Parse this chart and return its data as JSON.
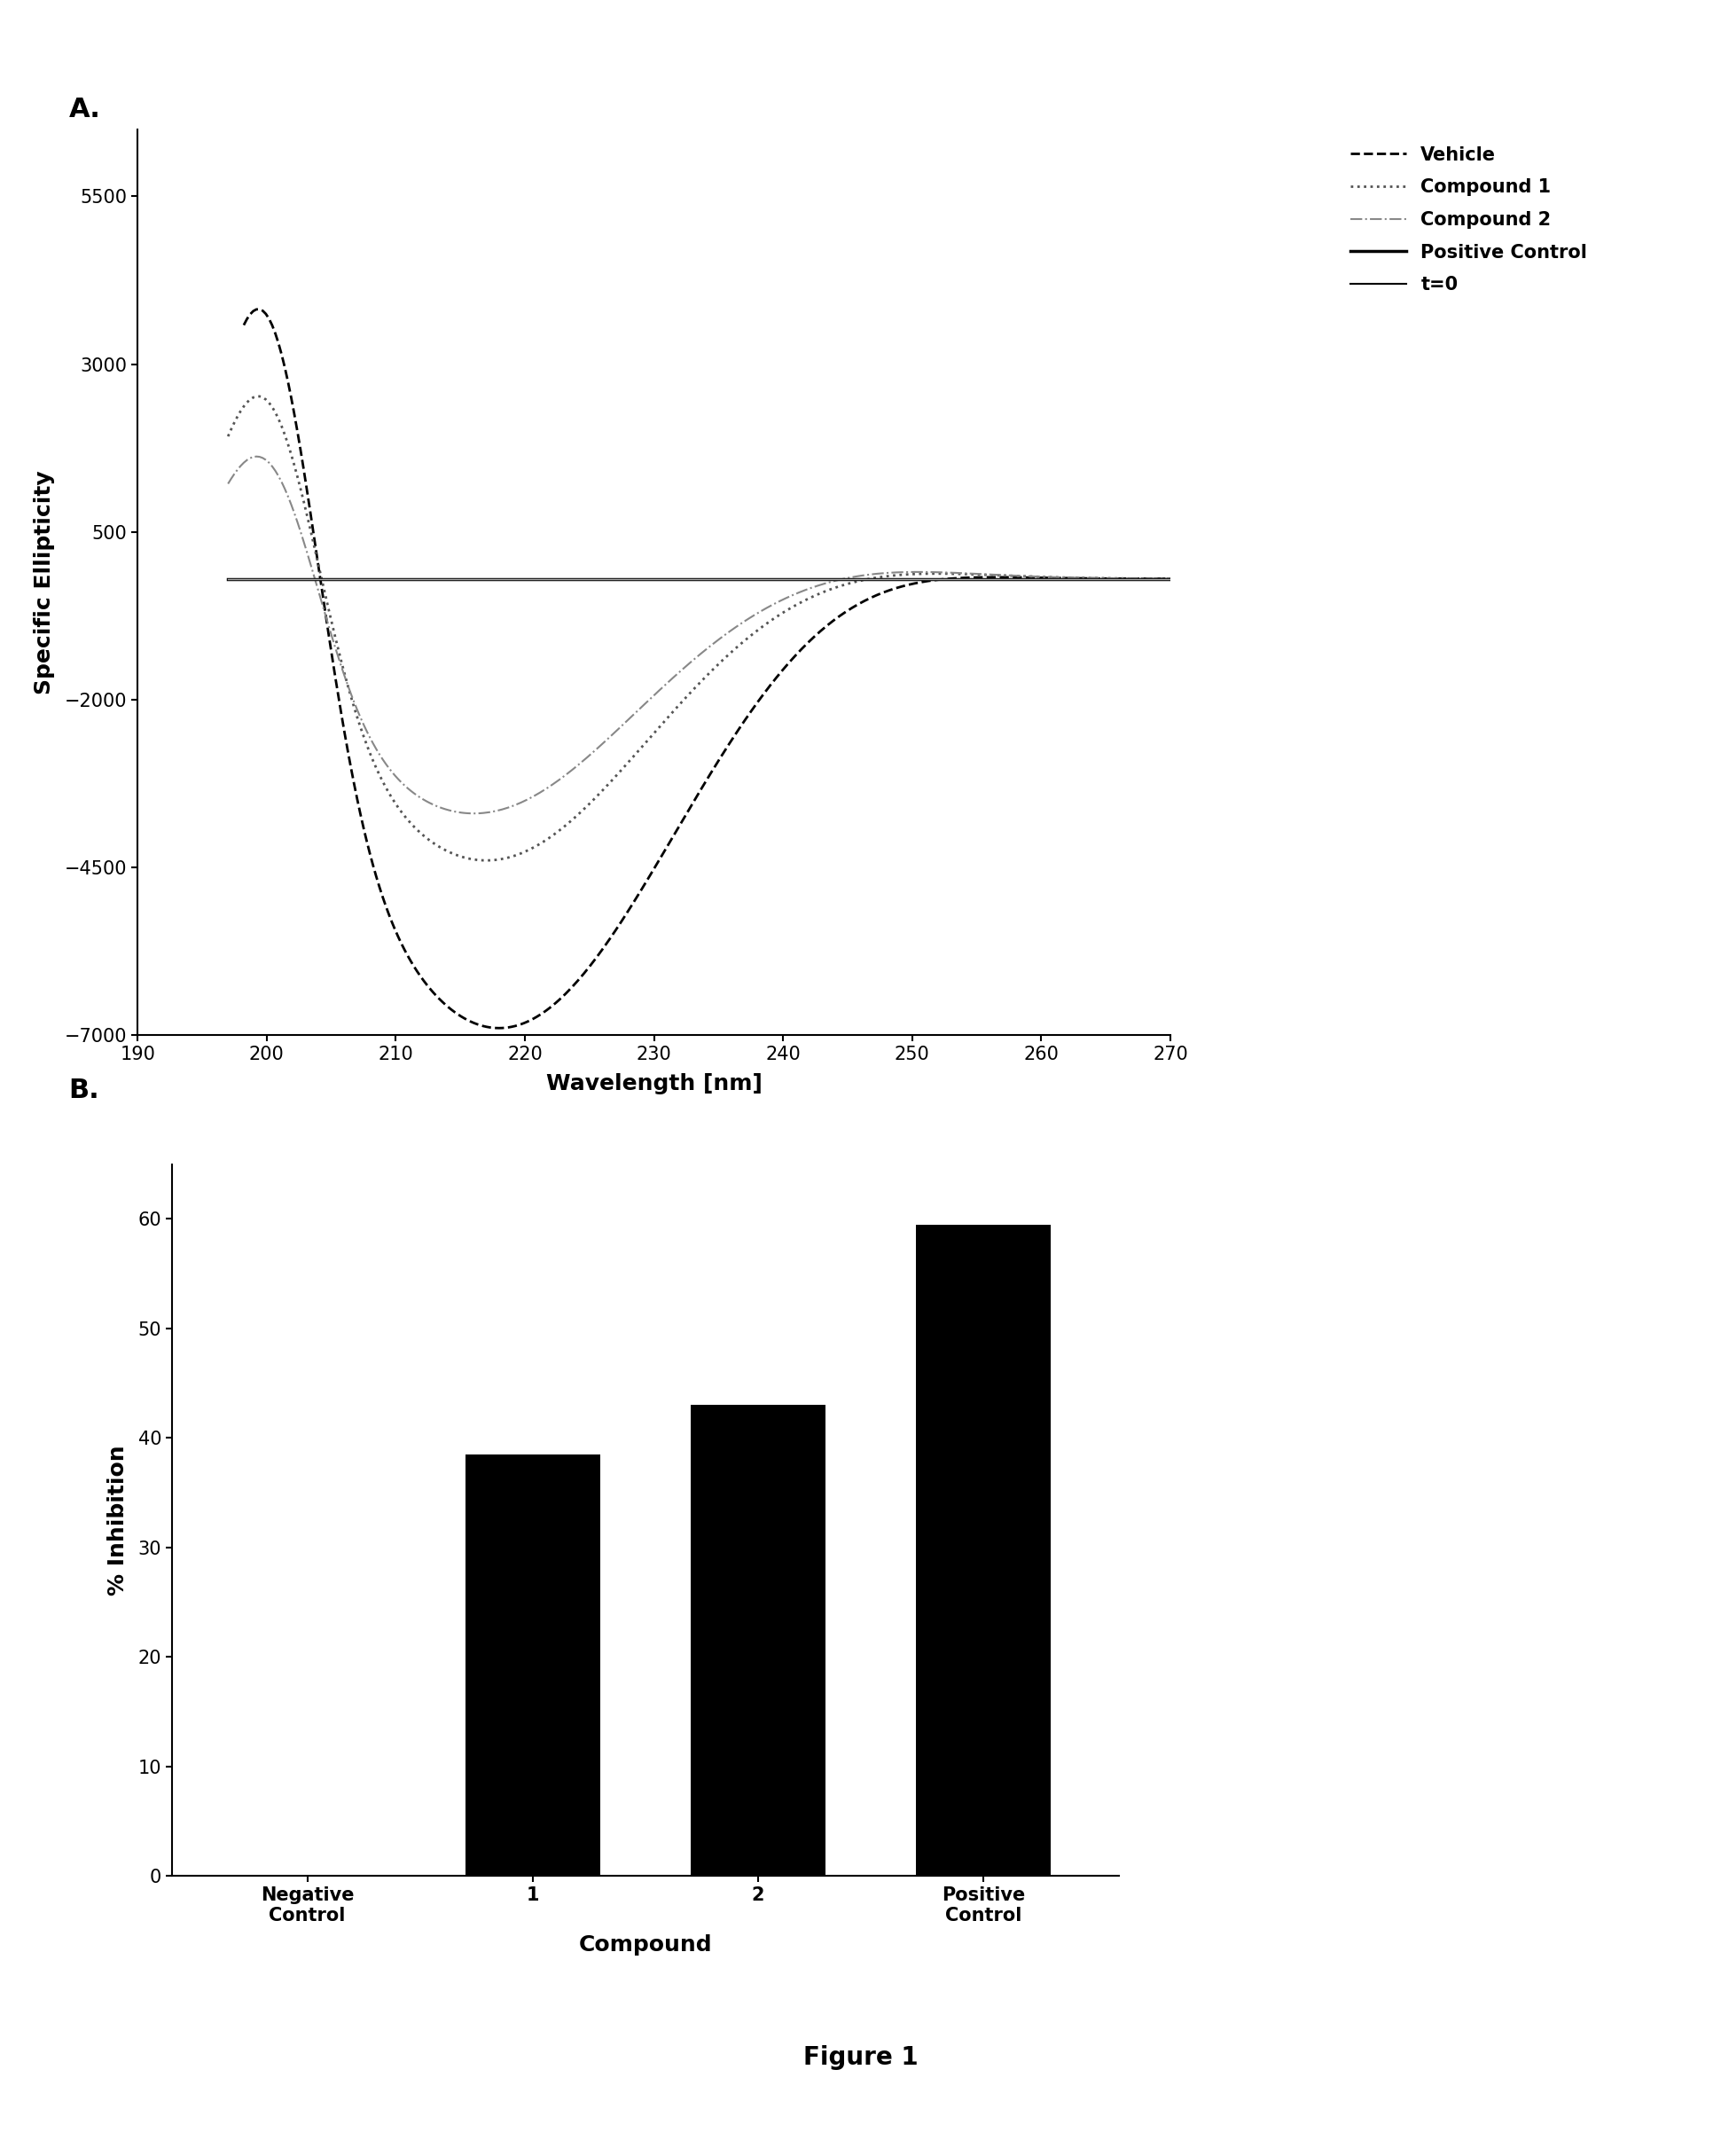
{
  "panel_a": {
    "xlabel": "Wavelength [nm]",
    "ylabel": "Specific Ellipticity",
    "xlim": [
      190,
      270
    ],
    "ylim": [
      -7000,
      6500
    ],
    "xticks": [
      190,
      200,
      210,
      220,
      230,
      240,
      250,
      260,
      270
    ],
    "yticks": [
      -7000,
      -4500,
      -2000,
      500,
      3000,
      5500
    ],
    "legend_entries": [
      "Vehicle",
      "Compound 1",
      "Compound 2",
      "Positive Control",
      "t=0"
    ],
    "legend_linestyles": [
      "--",
      ":",
      "-.",
      "-",
      "-"
    ],
    "legend_colors": [
      "#000000",
      "#555555",
      "#888888",
      "#000000",
      "#000000"
    ],
    "t0_value": -200
  },
  "panel_b": {
    "categories": [
      "Negative\nControl",
      "1",
      "2",
      "Positive\nControl"
    ],
    "values": [
      0,
      38.5,
      43.0,
      59.5
    ],
    "bar_color": "#000000",
    "xlabel": "Compound",
    "ylabel": "% Inhibition",
    "ylim": [
      0,
      65
    ],
    "yticks": [
      0,
      10,
      20,
      30,
      40,
      50,
      60
    ],
    "bar_width": 0.6
  },
  "figure_label": "Figure 1",
  "background_color": "#ffffff"
}
